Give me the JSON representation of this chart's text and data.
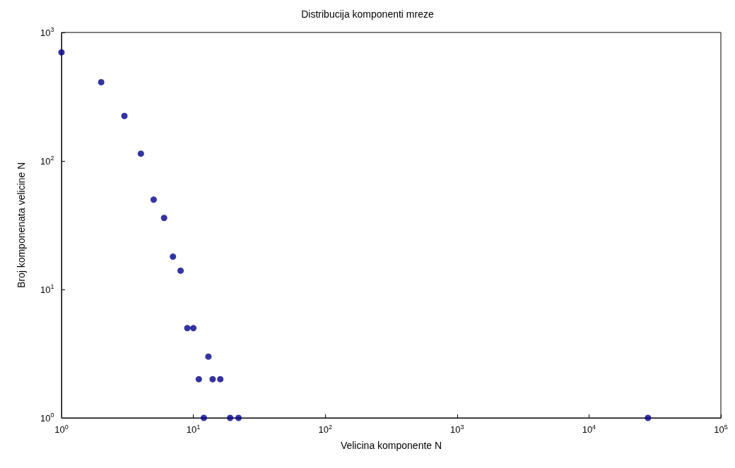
{
  "chart_data": {
    "type": "scatter",
    "title": "Distribucija komponenti mreze",
    "xlabel": "Velicina komponente N",
    "ylabel": "Broj komponenata velicine N",
    "x": [
      1,
      2,
      3,
      4,
      5,
      6,
      7,
      8,
      9,
      10,
      11,
      12,
      13,
      14,
      16,
      19,
      22,
      28000
    ],
    "series": [
      {
        "color": "#00008b",
        "values": [
          700,
          410,
          224,
          114,
          50,
          36,
          18,
          14,
          5,
          5,
          2,
          1,
          3,
          2,
          2,
          1,
          1,
          1
        ]
      }
    ],
    "log": "xy",
    "marker": "circle",
    "grid": false,
    "xlim": [
      1,
      100000
    ],
    "xticks": [
      {
        "value": 1,
        "label": "10$^{0}$"
      },
      {
        "value": 10,
        "label": "10$^{1}$"
      },
      {
        "value": 100,
        "label": "10$^{2}$"
      },
      {
        "value": 1000,
        "label": "10$^{3}$"
      },
      {
        "value": 10000,
        "label": "10$^{4}$"
      },
      {
        "value": 100000,
        "label": "10$^{5}$"
      }
    ],
    "ylim": [
      1,
      1000
    ],
    "yticks": [
      {
        "value": 1,
        "label": "10$^{0}$"
      },
      {
        "value": 10,
        "label": "10$^{1}$"
      },
      {
        "value": 100,
        "label": "10$^{2}$"
      },
      {
        "value": 1000,
        "label": "10$^{3}$"
      }
    ]
  }
}
